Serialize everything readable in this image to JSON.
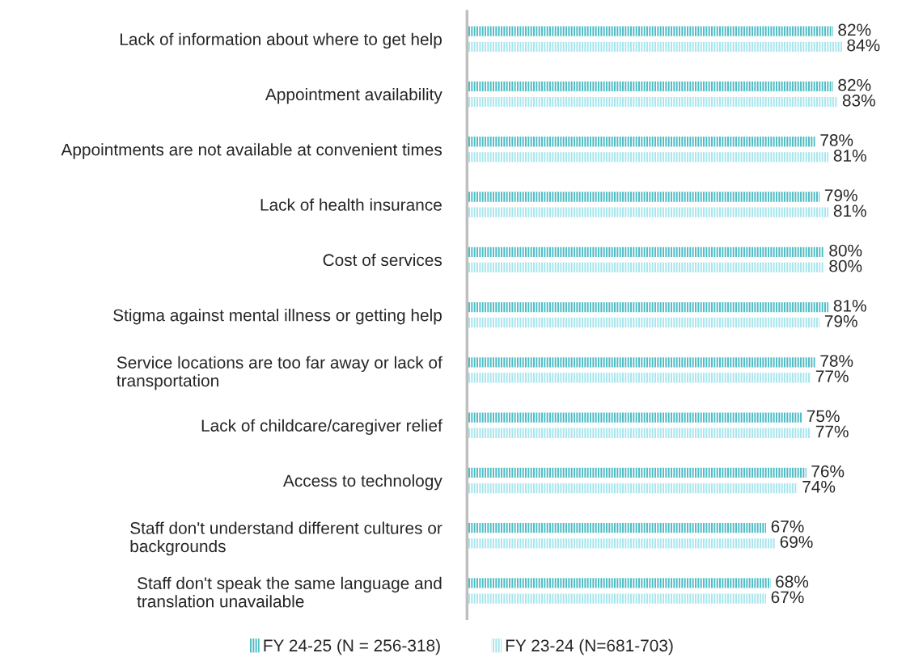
{
  "chart_data": {
    "type": "bar",
    "orientation": "horizontal",
    "categories": [
      "Lack of information about where to get help",
      "Appointment availability",
      "Appointments are not available at convenient times",
      "Lack of health insurance",
      "Cost of services",
      "Stigma against mental illness or getting help",
      "Service locations are too far away or lack of\ntransportation",
      "Lack of childcare/caregiver relief",
      "Access to technology",
      "Staff don't understand different cultures or\nbackgrounds",
      "Staff don't speak the same language and\ntranslation unavailable"
    ],
    "series": [
      {
        "name": "FY 24-25 (N = 256-318)",
        "color": "#4cbcc6",
        "values": [
          82,
          82,
          78,
          79,
          80,
          81,
          78,
          75,
          76,
          67,
          68
        ],
        "value_labels": [
          "82%",
          "82%",
          "78%",
          "79%",
          "80%",
          "81%",
          "78%",
          "75%",
          "76%",
          "67%",
          "68%"
        ]
      },
      {
        "name": "FY 23-24 (N=681-703)",
        "color": "#a6e6ee",
        "values": [
          84,
          83,
          81,
          81,
          80,
          79,
          77,
          77,
          74,
          69,
          67
        ],
        "value_labels": [
          "84%",
          "83%",
          "81%",
          "81%",
          "80%",
          "79%",
          "77%",
          "77%",
          "74%",
          "69%",
          "67%"
        ]
      }
    ],
    "tick_labels": "y",
    "grid": false,
    "legend": "bottom"
  }
}
